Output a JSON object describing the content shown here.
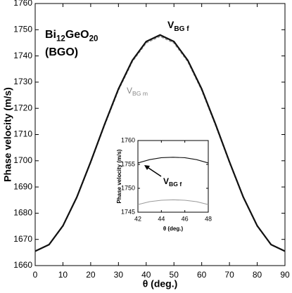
{
  "chart_data": [
    {
      "type": "line",
      "x_label": "θ (deg.)",
      "y_label": "Phase velocity  (m/s)",
      "x": [
        0,
        5,
        10,
        15,
        20,
        25,
        30,
        35,
        40,
        45,
        50,
        55,
        60,
        65,
        70,
        75,
        80,
        85,
        90
      ],
      "series": [
        {
          "color": "#111111",
          "values": [
            1665.5,
            1668.0,
            1675.2,
            1686.1,
            1699.6,
            1713.9,
            1727.4,
            1738.3,
            1745.5,
            1748.0,
            1745.5,
            1738.3,
            1727.4,
            1713.9,
            1699.6,
            1686.1,
            1675.2,
            1668.0,
            1665.5
          ]
        },
        {
          "color": "#9a9a9a",
          "values": [
            1665.5,
            1668.0,
            1675.1,
            1686.0,
            1699.4,
            1713.6,
            1727.0,
            1737.9,
            1745.0,
            1747.5,
            1745.0,
            1737.9,
            1727.0,
            1713.6,
            1699.4,
            1686.0,
            1675.1,
            1668.0,
            1665.5
          ]
        }
      ],
      "xlim": [
        0,
        90
      ],
      "xticks": [
        0,
        10,
        20,
        30,
        40,
        50,
        60,
        70,
        80,
        90
      ],
      "ylim": [
        1660,
        1760
      ],
      "yticks": [
        1660,
        1670,
        1680,
        1690,
        1700,
        1710,
        1720,
        1730,
        1740,
        1750,
        1760
      ],
      "annotations": [
        {
          "parts": [
            "Bi",
            "12",
            "GeO",
            "20"
          ]
        },
        {
          "parts": [
            "(BGO)"
          ]
        },
        {
          "parts": [
            "V",
            "BG f"
          ]
        },
        {
          "parts": [
            "V",
            "BG m"
          ]
        }
      ]
    },
    {
      "type": "line",
      "x_label": "θ (deg.)",
      "y_label": "Phase velocity (m/s)",
      "x": [
        42,
        43,
        44,
        45,
        46,
        47,
        48
      ],
      "series": [
        {
          "color": "#111111",
          "values": [
            1755.3,
            1756.0,
            1756.4,
            1756.5,
            1756.4,
            1756.0,
            1755.3
          ]
        },
        {
          "color": "#9a9a9a",
          "values": [
            1746.6,
            1747.2,
            1747.5,
            1747.6,
            1747.5,
            1747.2,
            1746.6
          ]
        }
      ],
      "xlim": [
        42,
        48
      ],
      "xticks": [
        42,
        44,
        46,
        48
      ],
      "ylim": [
        1745,
        1760
      ],
      "yticks": [
        1745,
        1750,
        1755,
        1760
      ],
      "annotations": [
        {
          "parts": [
            "V",
            "BG f"
          ]
        }
      ]
    }
  ]
}
